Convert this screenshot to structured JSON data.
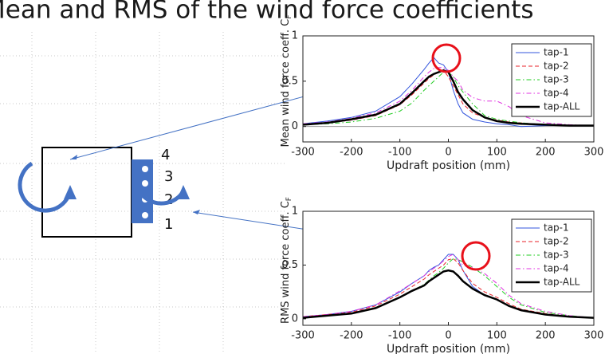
{
  "title": "Mean and RMS of the wind force coefficients",
  "diagram": {
    "tap_labels": [
      "4",
      "3",
      "2",
      "1"
    ]
  },
  "chart_data": [
    {
      "type": "line",
      "ylabel": "Mean wind force coeff. C",
      "ylabel_subscript": "F",
      "xlabel": "Updraft position (mm)",
      "x": [
        -300,
        -250,
        -200,
        -150,
        -100,
        -75,
        -50,
        -40,
        -30,
        -20,
        -10,
        0,
        10,
        20,
        30,
        50,
        75,
        100,
        125,
        150,
        200,
        250,
        300
      ],
      "xlim": [
        -300,
        300
      ],
      "xticks": [
        -300,
        -200,
        -100,
        0,
        100,
        200,
        300
      ],
      "ylim": [
        -0.17,
        1
      ],
      "yticks": [
        0,
        0.5,
        1
      ],
      "zero_line": true,
      "legend": "upper right",
      "series": [
        {
          "name": "tap-1",
          "color": "#3355dd",
          "linestyle": "solid",
          "linewidth": 1,
          "values": [
            0.03,
            0.06,
            0.1,
            0.17,
            0.33,
            0.47,
            0.63,
            0.7,
            0.76,
            0.7,
            0.68,
            0.6,
            0.4,
            0.25,
            0.15,
            0.08,
            0.05,
            0.03,
            0.02,
            0.0,
            0.01,
            0.01,
            0.01
          ]
        },
        {
          "name": "tap-2",
          "color": "#e8232a",
          "linestyle": "dashed",
          "linewidth": 1,
          "values": [
            0.02,
            0.04,
            0.07,
            0.12,
            0.24,
            0.35,
            0.48,
            0.53,
            0.57,
            0.6,
            0.62,
            0.55,
            0.45,
            0.35,
            0.25,
            0.15,
            0.1,
            0.07,
            0.05,
            0.04,
            0.02,
            0.01,
            0.01
          ]
        },
        {
          "name": "tap-3",
          "color": "#22cc22",
          "linestyle": "dashdot",
          "linewidth": 1,
          "values": [
            0.02,
            0.03,
            0.05,
            0.09,
            0.17,
            0.26,
            0.4,
            0.45,
            0.5,
            0.55,
            0.6,
            0.6,
            0.55,
            0.45,
            0.38,
            0.25,
            0.12,
            0.08,
            0.06,
            0.04,
            0.02,
            0.01,
            0.01
          ]
        },
        {
          "name": "tap-4",
          "color": "#e033e0",
          "linestyle": "dashdot",
          "linewidth": 1,
          "values": [
            0.03,
            0.05,
            0.09,
            0.15,
            0.28,
            0.4,
            0.55,
            0.6,
            0.64,
            0.65,
            0.65,
            0.62,
            0.55,
            0.5,
            0.4,
            0.32,
            0.28,
            0.28,
            0.22,
            0.12,
            0.04,
            0.02,
            0.01
          ]
        },
        {
          "name": "tap-ALL",
          "color": "#000000",
          "linestyle": "solid",
          "linewidth": 2.5,
          "values": [
            0.02,
            0.04,
            0.08,
            0.13,
            0.25,
            0.37,
            0.5,
            0.55,
            0.58,
            0.6,
            0.62,
            0.6,
            0.5,
            0.38,
            0.3,
            0.18,
            0.1,
            0.06,
            0.04,
            0.03,
            0.02,
            0.01,
            0.01
          ]
        }
      ]
    },
    {
      "type": "line",
      "ylabel": "RMS wind force coeff. C",
      "ylabel_subscript": "F",
      "xlabel": "Updraft position (mm)",
      "x": [
        -300,
        -250,
        -200,
        -150,
        -100,
        -75,
        -50,
        -40,
        -30,
        -20,
        -10,
        0,
        10,
        20,
        30,
        50,
        75,
        100,
        125,
        150,
        200,
        250,
        300
      ],
      "xlim": [
        -300,
        300
      ],
      "xticks": [
        -300,
        -200,
        -100,
        0,
        100,
        200,
        300
      ],
      "ylim": [
        -0.06,
        1
      ],
      "yticks": [
        0,
        0.5,
        1
      ],
      "zero_line": false,
      "legend": "upper right",
      "series": [
        {
          "name": "tap-1",
          "color": "#3355dd",
          "linestyle": "solid",
          "linewidth": 1,
          "values": [
            0.02,
            0.04,
            0.07,
            0.13,
            0.25,
            0.33,
            0.4,
            0.45,
            0.48,
            0.5,
            0.55,
            0.6,
            0.6,
            0.55,
            0.45,
            0.3,
            0.22,
            0.18,
            0.12,
            0.08,
            0.04,
            0.02,
            0.01
          ]
        },
        {
          "name": "tap-2",
          "color": "#e8232a",
          "linestyle": "dashed",
          "linewidth": 1,
          "values": [
            0.02,
            0.04,
            0.06,
            0.12,
            0.23,
            0.3,
            0.37,
            0.41,
            0.44,
            0.47,
            0.5,
            0.55,
            0.56,
            0.52,
            0.45,
            0.33,
            0.25,
            0.2,
            0.14,
            0.09,
            0.05,
            0.02,
            0.01
          ]
        },
        {
          "name": "tap-3",
          "color": "#22cc22",
          "linestyle": "dashdot",
          "linewidth": 1,
          "values": [
            0.02,
            0.03,
            0.05,
            0.1,
            0.2,
            0.26,
            0.32,
            0.36,
            0.4,
            0.43,
            0.47,
            0.52,
            0.56,
            0.55,
            0.53,
            0.48,
            0.4,
            0.3,
            0.2,
            0.13,
            0.06,
            0.03,
            0.01
          ]
        },
        {
          "name": "tap-4",
          "color": "#e033e0",
          "linestyle": "dashdot",
          "linewidth": 1,
          "values": [
            0.02,
            0.04,
            0.07,
            0.13,
            0.26,
            0.33,
            0.4,
            0.44,
            0.47,
            0.5,
            0.54,
            0.58,
            0.6,
            0.55,
            0.5,
            0.48,
            0.42,
            0.33,
            0.22,
            0.14,
            0.07,
            0.03,
            0.01
          ]
        },
        {
          "name": "tap-ALL",
          "color": "#000000",
          "linestyle": "solid",
          "linewidth": 2.5,
          "values": [
            0.01,
            0.03,
            0.05,
            0.1,
            0.2,
            0.26,
            0.31,
            0.35,
            0.38,
            0.41,
            0.44,
            0.45,
            0.44,
            0.4,
            0.35,
            0.28,
            0.22,
            0.18,
            0.12,
            0.08,
            0.04,
            0.02,
            0.01
          ]
        }
      ]
    }
  ]
}
